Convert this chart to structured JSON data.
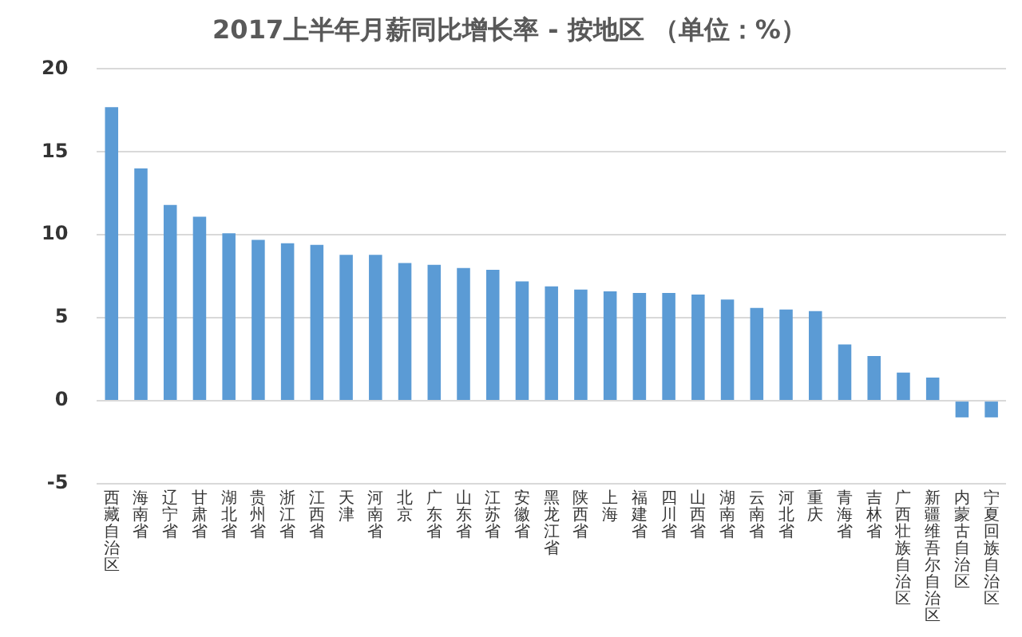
{
  "chart_data": {
    "type": "bar",
    "title": "2017上半年月薪同比增长率 - 按地区 （单位：%）",
    "categories": [
      "西藏自治区",
      "海南省",
      "辽宁省",
      "甘肃省",
      "湖北省",
      "贵州省",
      "浙江省",
      "江西省",
      "天津",
      "河南省",
      "北京",
      "广东省",
      "山东省",
      "江苏省",
      "安徽省",
      "黑龙江省",
      "陕西省",
      "上海",
      "福建省",
      "四川省",
      "山西省",
      "湖南省",
      "云南省",
      "河北省",
      "重庆",
      "青海省",
      "吉林省",
      "广西壮族自治区",
      "新疆维吾尔自治区",
      "内蒙古自治区",
      "宁夏回族自治区"
    ],
    "values": [
      17.7,
      14.0,
      11.8,
      11.1,
      10.1,
      9.7,
      9.5,
      9.4,
      8.8,
      8.8,
      8.3,
      8.2,
      8.0,
      7.9,
      7.2,
      6.9,
      6.7,
      6.6,
      6.5,
      6.5,
      6.4,
      6.1,
      5.6,
      5.5,
      5.4,
      3.4,
      2.7,
      1.7,
      1.4,
      -1.0,
      -1.0
    ],
    "color": "#5b9bd5",
    "ylim": [
      -5,
      20
    ],
    "yticks": [
      -5,
      0,
      5,
      10,
      15,
      20
    ],
    "grid": "y",
    "legend": false
  }
}
